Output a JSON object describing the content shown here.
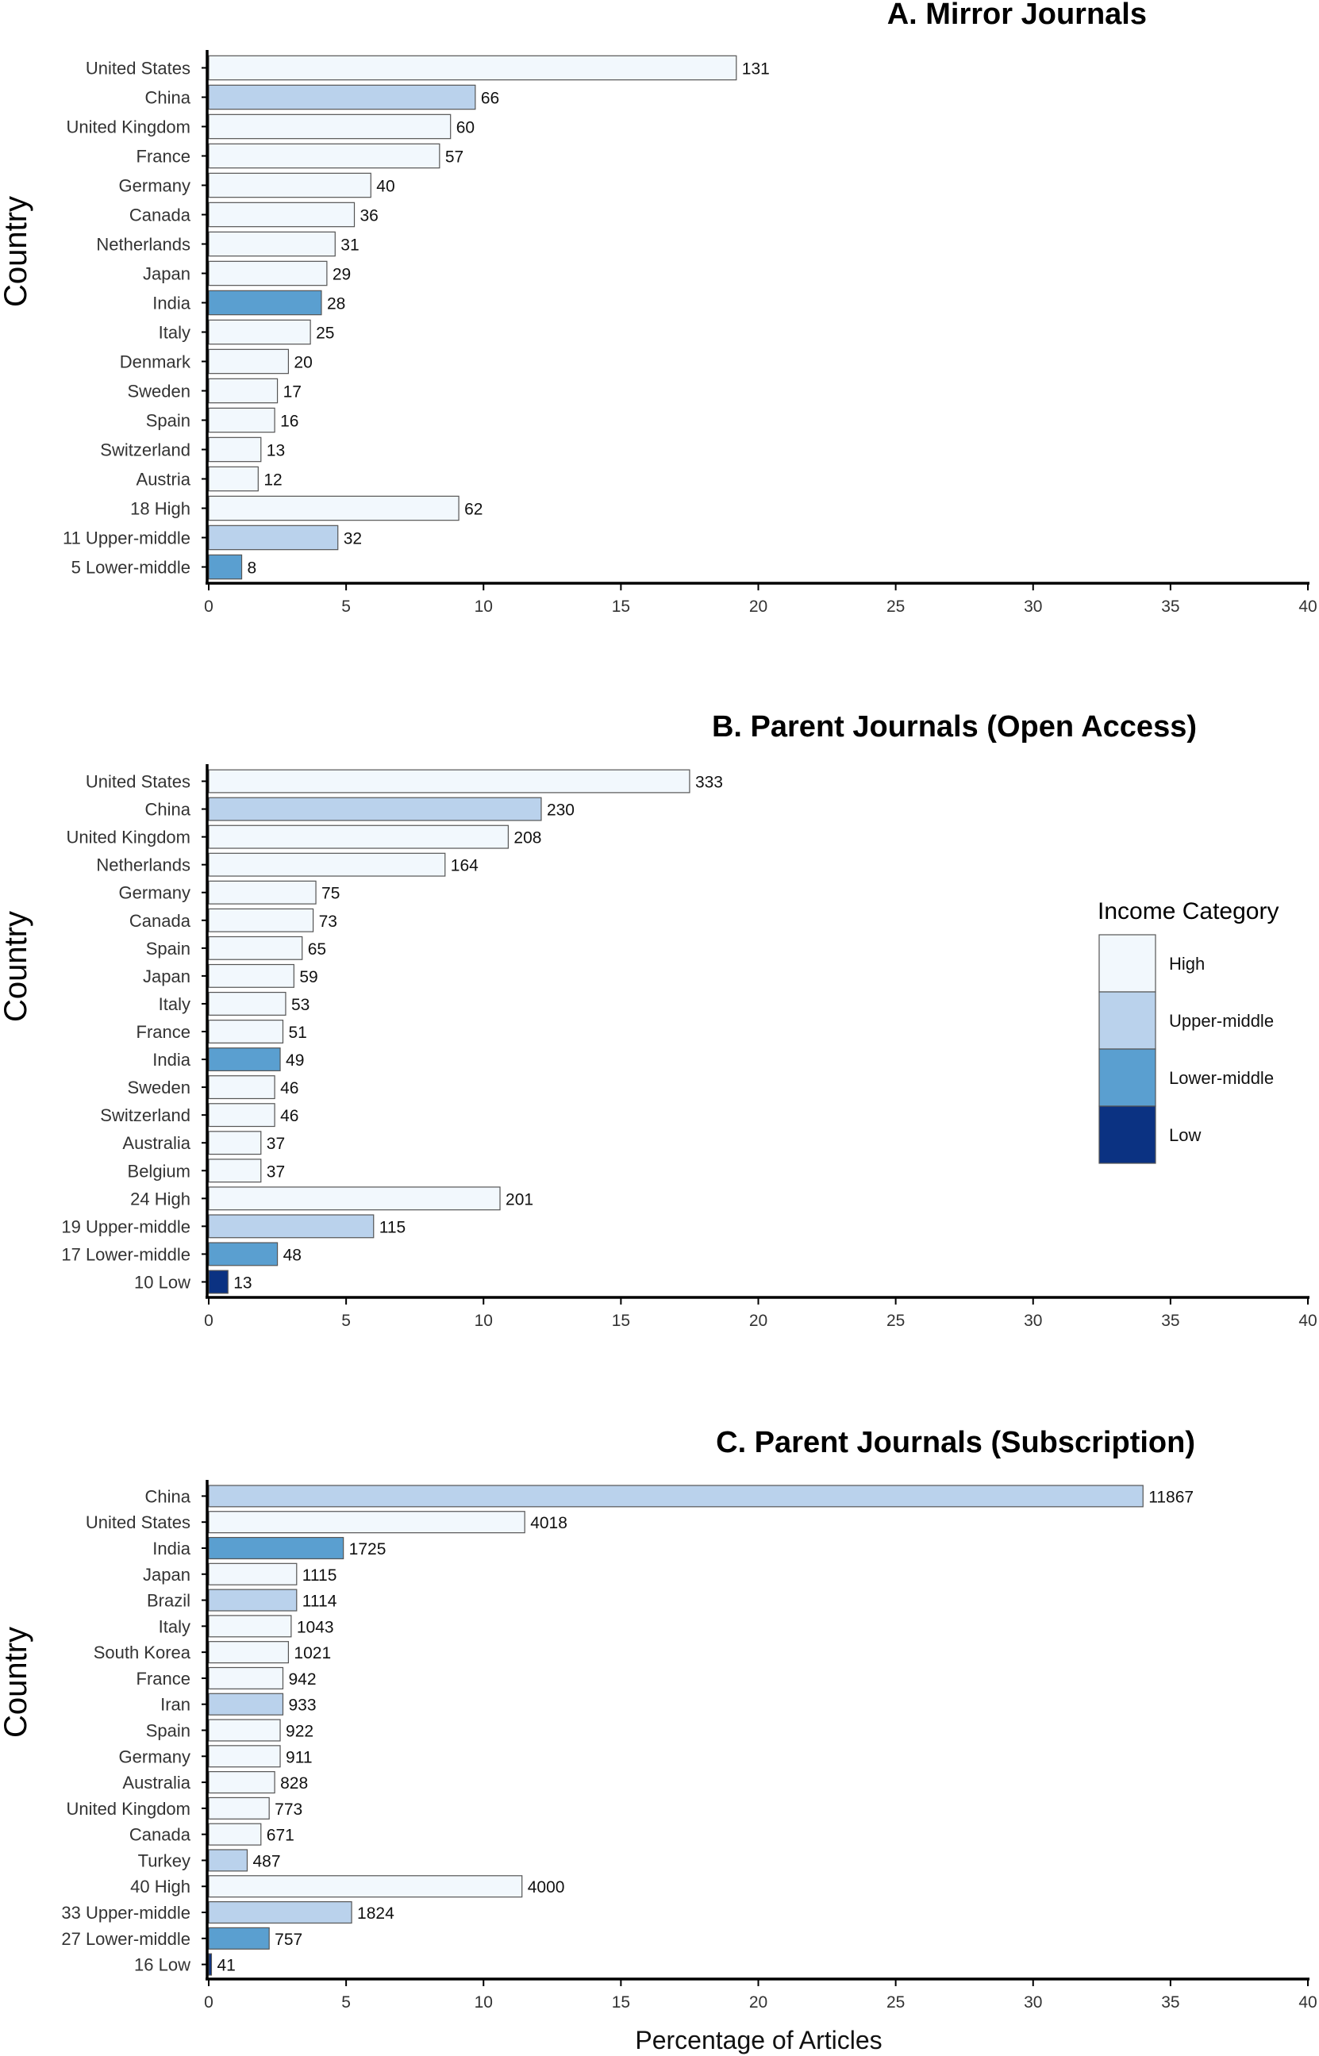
{
  "colors": {
    "High": "#f2f8fd",
    "Upper-middle": "#bad2ec",
    "Lower-middle": "#5a9fd0",
    "Low": "#0b3282"
  },
  "xlabel": "Percentage of Articles",
  "chart_data": [
    {
      "type": "bar",
      "orientation": "horizontal",
      "title": "A. Mirror Journals",
      "ylabel": "Country",
      "xlabel": "",
      "xlim": [
        0,
        40
      ],
      "xticks": [
        "0",
        "5",
        "10",
        "15",
        "20",
        "25",
        "30",
        "35",
        "40"
      ],
      "grid": false,
      "categories": [
        "United States",
        "China",
        "United Kingdom",
        "France",
        "Germany",
        "Canada",
        "Netherlands",
        "Japan",
        "India",
        "Italy",
        "Denmark",
        "Sweden",
        "Spain",
        "Switzerland",
        "Austria",
        "18 High",
        "11 Upper-middle",
        "5 Lower-middle"
      ],
      "values": [
        19.2,
        9.7,
        8.8,
        8.4,
        5.9,
        5.3,
        4.6,
        4.3,
        4.1,
        3.7,
        2.9,
        2.5,
        2.4,
        1.9,
        1.8,
        9.1,
        4.7,
        1.2
      ],
      "labels": [
        "131",
        "66",
        "60",
        "57",
        "40",
        "36",
        "31",
        "29",
        "28",
        "25",
        "20",
        "17",
        "16",
        "13",
        "12",
        "62",
        "32",
        "8"
      ],
      "income": [
        "High",
        "Upper-middle",
        "High",
        "High",
        "High",
        "High",
        "High",
        "High",
        "Lower-middle",
        "High",
        "High",
        "High",
        "High",
        "High",
        "High",
        "High",
        "Upper-middle",
        "Lower-middle"
      ]
    },
    {
      "type": "bar",
      "orientation": "horizontal",
      "title": "B. Parent Journals (Open Access)",
      "ylabel": "Country",
      "xlabel": "",
      "xlim": [
        0,
        40
      ],
      "xticks": [
        "0",
        "5",
        "10",
        "15",
        "20",
        "25",
        "30",
        "35",
        "40"
      ],
      "grid": false,
      "categories": [
        "United States",
        "China",
        "United Kingdom",
        "Netherlands",
        "Germany",
        "Canada",
        "Spain",
        "Japan",
        "Italy",
        "France",
        "India",
        "Sweden",
        "Switzerland",
        "Australia",
        "Belgium",
        "24 High",
        "19 Upper-middle",
        "17 Lower-middle",
        "10 Low"
      ],
      "values": [
        17.5,
        12.1,
        10.9,
        8.6,
        3.9,
        3.8,
        3.4,
        3.1,
        2.8,
        2.7,
        2.6,
        2.4,
        2.4,
        1.9,
        1.9,
        10.6,
        6.0,
        2.5,
        0.7
      ],
      "labels": [
        "333",
        "230",
        "208",
        "164",
        "75",
        "73",
        "65",
        "59",
        "53",
        "51",
        "49",
        "46",
        "46",
        "37",
        "37",
        "201",
        "115",
        "48",
        "13"
      ],
      "income": [
        "High",
        "Upper-middle",
        "High",
        "High",
        "High",
        "High",
        "High",
        "High",
        "High",
        "High",
        "Lower-middle",
        "High",
        "High",
        "High",
        "High",
        "High",
        "Upper-middle",
        "Lower-middle",
        "Low"
      ],
      "legend": {
        "title": "Income Category",
        "position": "right",
        "entries": [
          "High",
          "Upper-middle",
          "Lower-middle",
          "Low"
        ]
      }
    },
    {
      "type": "bar",
      "orientation": "horizontal",
      "title": "C. Parent Journals (Subscription)",
      "ylabel": "Country",
      "xlabel": "Percentage of Articles",
      "xlim": [
        0,
        40
      ],
      "xticks": [
        "0",
        "5",
        "10",
        "15",
        "20",
        "25",
        "30",
        "35",
        "40"
      ],
      "grid": false,
      "categories": [
        "China",
        "United States",
        "India",
        "Japan",
        "Brazil",
        "Italy",
        "South Korea",
        "France",
        "Iran",
        "Spain",
        "Germany",
        "Australia",
        "United Kingdom",
        "Canada",
        "Turkey",
        "40 High",
        "33 Upper-middle",
        "27 Lower-middle",
        "16 Low"
      ],
      "values": [
        34.0,
        11.5,
        4.9,
        3.2,
        3.2,
        3.0,
        2.9,
        2.7,
        2.7,
        2.6,
        2.6,
        2.4,
        2.2,
        1.9,
        1.4,
        11.4,
        5.2,
        2.2,
        0.1
      ],
      "labels": [
        "11867",
        "4018",
        "1725",
        "1115",
        "1114",
        "1043",
        "1021",
        "942",
        "933",
        "922",
        "911",
        "828",
        "773",
        "671",
        "487",
        "4000",
        "1824",
        "757",
        "41"
      ],
      "income": [
        "Upper-middle",
        "High",
        "Lower-middle",
        "High",
        "Upper-middle",
        "High",
        "High",
        "High",
        "Upper-middle",
        "High",
        "High",
        "High",
        "High",
        "High",
        "Upper-middle",
        "High",
        "Upper-middle",
        "Lower-middle",
        "Low"
      ]
    }
  ]
}
